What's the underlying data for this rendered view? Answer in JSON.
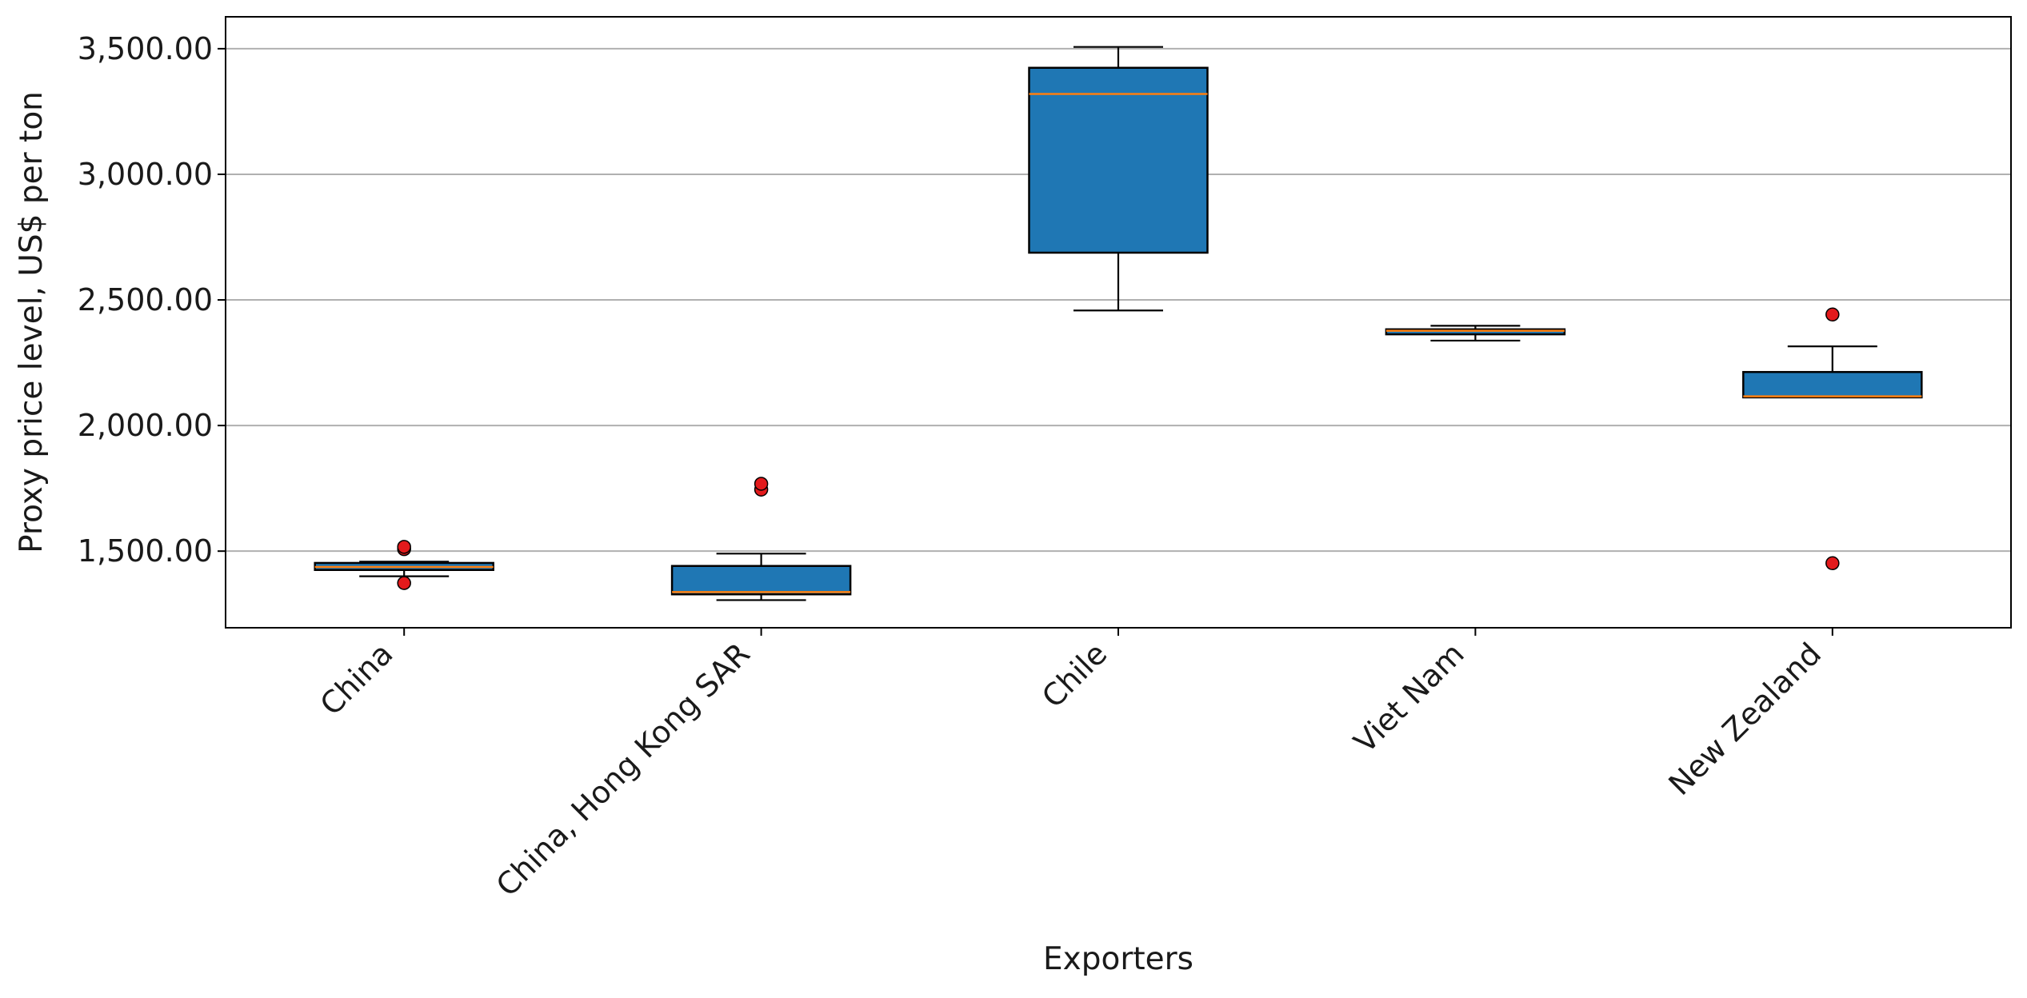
{
  "chart_data": {
    "type": "box",
    "title": "",
    "xlabel": "Exporters",
    "ylabel": "Proxy price level, US$ per ton",
    "ylim": [
      1195,
      3627
    ],
    "yticks": [
      1500,
      2000,
      2500,
      3000,
      3500
    ],
    "ytick_labels": [
      "1,500.00",
      "2,000.00",
      "2,500.00",
      "3,000.00",
      "3,500.00"
    ],
    "grid": "horizontal",
    "legend": "none",
    "colors": {
      "box_fill": "#1f77b4",
      "median": "#ff7f0e",
      "outlier_fill": "#e31a1c",
      "grid": "#b0b0b0",
      "edge": "#000000"
    },
    "categories": [
      "China",
      "China, Hong Kong SAR",
      "Chile",
      "Viet Nam",
      "New Zealand"
    ],
    "boxes": [
      {
        "category": "China",
        "whisker_low": 1400,
        "q1": 1425,
        "median": 1437,
        "q3": 1453,
        "whisker_high": 1458,
        "outliers": [
          1373,
          1508,
          1517
        ]
      },
      {
        "category": "China, Hong Kong SAR",
        "whisker_low": 1305,
        "q1": 1328,
        "median": 1337,
        "q3": 1441,
        "whisker_high": 1490,
        "outliers": [
          1745,
          1768
        ]
      },
      {
        "category": "Chile",
        "whisker_low": 2458,
        "q1": 2688,
        "median": 3320,
        "q3": 3424,
        "whisker_high": 3507,
        "outliers": []
      },
      {
        "category": "Viet Nam",
        "whisker_low": 2338,
        "q1": 2363,
        "median": 2377,
        "q3": 2383,
        "whisker_high": 2397,
        "outliers": []
      },
      {
        "category": "New Zealand",
        "whisker_low": 2112,
        "q1": 2112,
        "median": 2116,
        "q3": 2213,
        "whisker_high": 2315,
        "outliers": [
          1452,
          2442
        ]
      }
    ]
  }
}
